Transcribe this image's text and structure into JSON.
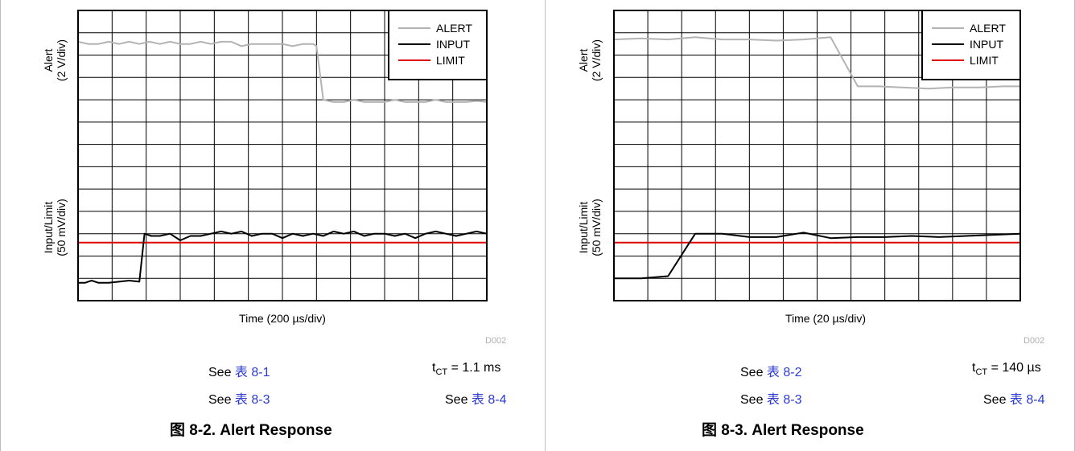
{
  "figures": [
    {
      "ylabel_alert_1": "Alert",
      "ylabel_alert_2": "(2 V/div)",
      "ylabel_input_1": "Input/Limit",
      "ylabel_input_2": "(50 mV/div)",
      "xlabel": "Time (200 µs/div)",
      "code": "D002",
      "see_a_prefix": "See ",
      "see_a_link": "表 8-1",
      "see_b_prefix": "See ",
      "see_b_link": "表 8-3",
      "tct_main": "t",
      "tct_sub": "CT",
      "tct_value": " = 1.1 ms",
      "see_c_prefix": "See ",
      "see_c_link": "表 8-4",
      "caption": "图 8-2. Alert Response"
    },
    {
      "ylabel_alert_1": "Alert",
      "ylabel_alert_2": "(2 V/div)",
      "ylabel_input_1": "Input/Limit",
      "ylabel_input_2": "(50 mV/div)",
      "xlabel": "Time (20 µs/div)",
      "code": "D002",
      "see_a_prefix": "See ",
      "see_a_link": "表 8-2",
      "see_b_prefix": "See ",
      "see_b_link": "表 8-3",
      "tct_main": "t",
      "tct_sub": "CT",
      "tct_value": " = 140 µs",
      "see_c_prefix": "See ",
      "see_c_link": "表 8-4",
      "caption": "图 8-3. Alert Response"
    }
  ],
  "chart_data": [
    {
      "type": "line",
      "x_divisions": 12,
      "y_divisions": 13,
      "grid": true,
      "legend_placement": "top-right",
      "series": [
        {
          "name": "ALERT",
          "color": "#b3b3b3",
          "x": [
            0,
            0.3,
            0.6,
            0.9,
            1.2,
            1.5,
            1.8,
            2.1,
            2.4,
            2.7,
            3.0,
            3.3,
            3.6,
            3.9,
            4.2,
            4.5,
            4.8,
            5.1,
            5.4,
            5.7,
            6.0,
            6.3,
            6.6,
            6.9,
            7.0,
            7.2,
            7.5,
            7.8,
            8.1,
            8.4,
            8.7,
            9.0,
            9.3,
            9.6,
            9.9,
            10.2,
            10.5,
            10.8,
            11.1,
            11.4,
            11.7,
            12.0
          ],
          "y": [
            11.6,
            11.5,
            11.5,
            11.6,
            11.5,
            11.6,
            11.5,
            11.6,
            11.5,
            11.6,
            11.5,
            11.5,
            11.6,
            11.5,
            11.6,
            11.6,
            11.4,
            11.5,
            11.5,
            11.5,
            11.5,
            11.4,
            11.5,
            11.5,
            11.4,
            9.0,
            8.9,
            8.9,
            9.0,
            8.9,
            8.9,
            8.9,
            9.0,
            8.9,
            8.9,
            8.9,
            9.0,
            8.9,
            8.9,
            8.9,
            8.95,
            8.9
          ]
        },
        {
          "name": "INPUT",
          "color": "#000000",
          "x": [
            0,
            0.2,
            0.4,
            0.6,
            0.9,
            1.2,
            1.5,
            1.8,
            1.95,
            2.15,
            2.4,
            2.7,
            3.0,
            3.3,
            3.6,
            3.9,
            4.2,
            4.5,
            4.8,
            5.1,
            5.4,
            5.7,
            6.0,
            6.3,
            6.6,
            6.9,
            7.2,
            7.5,
            7.8,
            8.1,
            8.4,
            8.7,
            9.0,
            9.3,
            9.6,
            9.9,
            10.2,
            10.5,
            10.8,
            11.1,
            11.4,
            11.7,
            12.0
          ],
          "y": [
            0.8,
            0.8,
            0.9,
            0.8,
            0.8,
            0.85,
            0.9,
            0.85,
            3.0,
            2.9,
            2.9,
            3.0,
            2.7,
            2.9,
            2.9,
            3.0,
            3.1,
            3.0,
            3.1,
            2.9,
            3.0,
            3.0,
            2.8,
            3.0,
            2.9,
            3.0,
            2.9,
            3.1,
            3.0,
            3.1,
            2.9,
            3.0,
            3.0,
            2.9,
            3.0,
            2.8,
            3.0,
            3.1,
            3.0,
            2.9,
            3.0,
            3.1,
            3.0
          ]
        },
        {
          "name": "LIMIT",
          "color": "#e00000",
          "x": [
            0,
            12
          ],
          "y": [
            2.6,
            2.6
          ]
        }
      ]
    },
    {
      "type": "line",
      "x_divisions": 12,
      "y_divisions": 13,
      "grid": true,
      "legend_placement": "top-right",
      "series": [
        {
          "name": "ALERT",
          "color": "#b3b3b3",
          "x": [
            0,
            0.8,
            1.6,
            2.4,
            3.2,
            4.0,
            4.8,
            5.6,
            6.4,
            7.2,
            7.8,
            8.5,
            9.3,
            10.0,
            10.8,
            11.5,
            12.0
          ],
          "y": [
            11.7,
            11.75,
            11.7,
            11.8,
            11.7,
            11.7,
            11.65,
            11.7,
            11.8,
            9.6,
            9.6,
            9.55,
            9.5,
            9.55,
            9.55,
            9.6,
            9.6
          ]
        },
        {
          "name": "INPUT",
          "color": "#000000",
          "x": [
            0,
            0.8,
            1.6,
            2.4,
            3.2,
            4.0,
            4.8,
            5.6,
            6.4,
            7.2,
            8.0,
            8.8,
            9.6,
            10.4,
            11.2,
            12.0
          ],
          "y": [
            1.0,
            1.0,
            1.1,
            3.0,
            3.0,
            2.85,
            2.85,
            3.05,
            2.8,
            2.85,
            2.85,
            2.9,
            2.85,
            2.9,
            2.95,
            3.0
          ]
        },
        {
          "name": "LIMIT",
          "color": "#e00000",
          "x": [
            0,
            12
          ],
          "y": [
            2.6,
            2.6
          ]
        }
      ]
    }
  ]
}
